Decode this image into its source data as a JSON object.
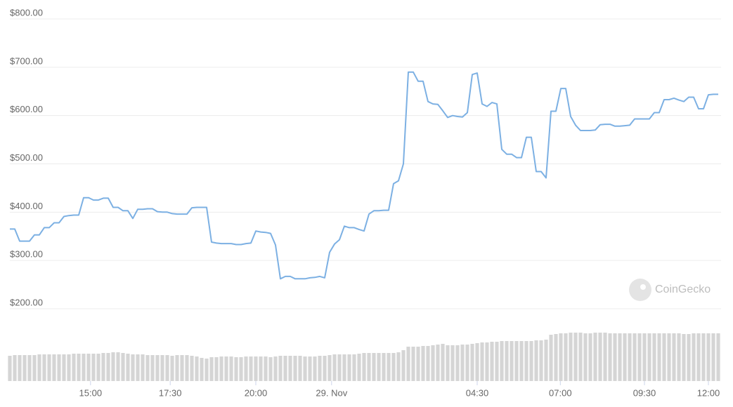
{
  "chart_data": {
    "type": "line",
    "series": [
      {
        "name": "Price",
        "color": "#7cb0e3",
        "values": [
          365,
          365,
          340,
          340,
          340,
          353,
          353,
          368,
          368,
          378,
          378,
          391,
          393,
          394,
          394,
          430,
          430,
          425,
          425,
          429,
          429,
          410,
          410,
          403,
          403,
          387,
          406,
          406,
          407,
          407,
          401,
          400,
          400,
          397,
          396,
          396,
          396,
          409,
          410,
          410,
          410,
          338,
          336,
          335,
          335,
          335,
          333,
          333,
          335,
          336,
          361,
          359,
          358,
          356,
          332,
          262,
          267,
          267,
          262,
          262,
          262,
          264,
          265,
          267,
          264,
          317,
          334,
          343,
          371,
          368,
          368,
          364,
          361,
          396,
          403,
          403,
          404,
          404,
          459,
          465,
          500,
          690,
          690,
          671,
          671,
          629,
          624,
          623,
          610,
          596,
          600,
          598,
          597,
          606,
          685,
          688,
          624,
          619,
          627,
          624,
          530,
          520,
          520,
          513,
          513,
          555,
          555,
          484,
          484,
          471,
          609,
          609,
          656,
          656,
          598,
          580,
          569,
          569,
          569,
          570,
          581,
          582,
          582,
          578,
          578,
          579,
          580,
          593,
          593,
          593,
          593,
          606,
          606,
          633,
          633,
          636,
          632,
          629,
          638,
          638,
          614,
          614,
          643,
          644,
          644
        ]
      },
      {
        "name": "Volume",
        "color": "#d5d5d5",
        "values": [
          36,
          37,
          37,
          37,
          37,
          37,
          38,
          38,
          38,
          38,
          38,
          38,
          38,
          39,
          39,
          39,
          39,
          39,
          39,
          40,
          40,
          41,
          41,
          40,
          39,
          38,
          38,
          38,
          37,
          37,
          37,
          37,
          37,
          36,
          37,
          37,
          37,
          36,
          35,
          33,
          32,
          34,
          34,
          35,
          35,
          35,
          34,
          34,
          35,
          35,
          35,
          35,
          35,
          34,
          35,
          36,
          36,
          36,
          36,
          36,
          35,
          35,
          35,
          36,
          36,
          37,
          38,
          38,
          38,
          38,
          38,
          39,
          40,
          40,
          40,
          40,
          40,
          40,
          40,
          41,
          44,
          49,
          49,
          49,
          50,
          50,
          51,
          52,
          53,
          51,
          51,
          51,
          52,
          52,
          53,
          54,
          55,
          55,
          56,
          56,
          57,
          57,
          57,
          57,
          57,
          57,
          57,
          58,
          58,
          59,
          66,
          67,
          68,
          68,
          69,
          69,
          69,
          68,
          68,
          69,
          69,
          69,
          68,
          68,
          68,
          68,
          68,
          68,
          68,
          68,
          68,
          68,
          68,
          68,
          68,
          68,
          68,
          67,
          67,
          68,
          68,
          68,
          68,
          68,
          68
        ]
      }
    ],
    "xlim": [
      0,
      144
    ],
    "xticks": [
      {
        "value": 16.4,
        "label": "15:00"
      },
      {
        "value": 32.6,
        "label": "17:30"
      },
      {
        "value": 50,
        "label": "20:00"
      },
      {
        "value": 65.4,
        "label": "29. Nov"
      },
      {
        "value": 95,
        "label": "04:30"
      },
      {
        "value": 111.9,
        "label": "07:00"
      },
      {
        "value": 129,
        "label": "09:30"
      },
      {
        "value": 142,
        "label": "12:00"
      }
    ],
    "ylim": [
      200,
      800
    ],
    "yticks": [
      {
        "value": 200,
        "label": "$200.00"
      },
      {
        "value": 300,
        "label": "$300.00"
      },
      {
        "value": 400,
        "label": "$400.00"
      },
      {
        "value": 500,
        "label": "$500.00"
      },
      {
        "value": 600,
        "label": "$600.00"
      },
      {
        "value": 700,
        "label": "$700.00"
      },
      {
        "value": 800,
        "label": "$800.00"
      }
    ],
    "grid": true,
    "watermark": "CoinGecko"
  }
}
